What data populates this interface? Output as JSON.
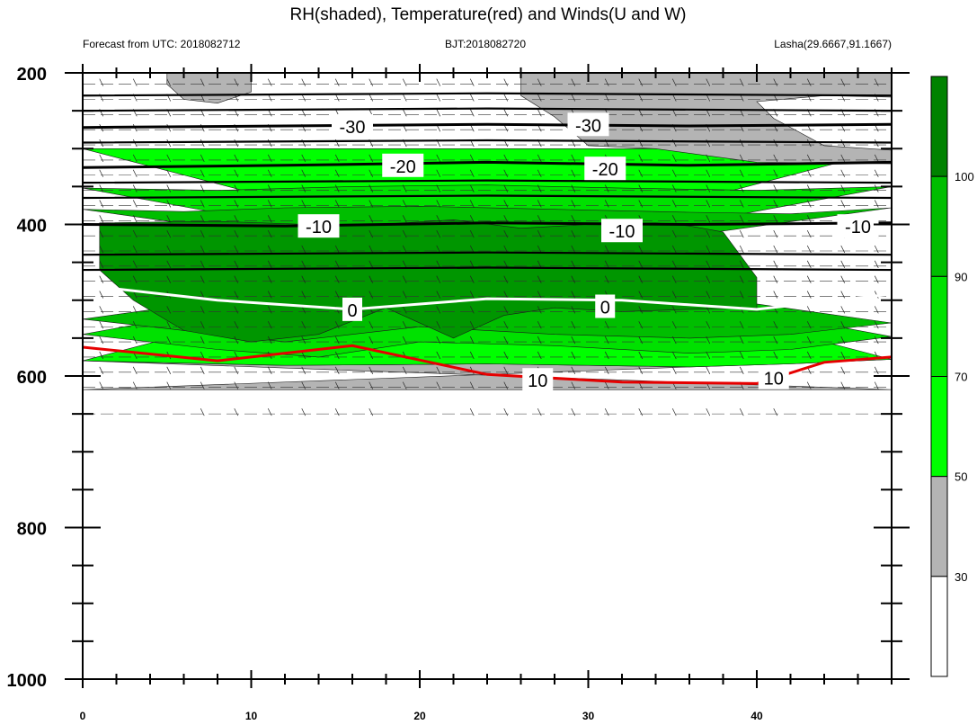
{
  "title": "RH(shaded), Temperature(red) and Winds(U and W)",
  "subtitle_left": "Forecast from UTC: 2018082712",
  "subtitle_center": "BJT:2018082720",
  "subtitle_right": "Lasha(29.6667,91.1667)",
  "colors": {
    "white": "#ffffff",
    "gray": "#b4b4b4",
    "light_green": "#00ff00",
    "mid_green": "#00e100",
    "green": "#00be00",
    "dark_green": "#009600",
    "darkest_green": "#008200",
    "temp_black": "#000000",
    "temp_zero": "#ffffff",
    "temp_warm": "#e60000"
  },
  "chart_data": {
    "type": "heatmap",
    "title": "RH(shaded), Temperature(red) and Winds(U and W)",
    "xlim": [
      0,
      48
    ],
    "ylim": [
      1000,
      200
    ],
    "x_ticks": [
      0,
      10,
      20,
      30,
      40
    ],
    "y_ticks": [
      200,
      400,
      600,
      800,
      1000
    ],
    "colorbar": {
      "levels": [
        30,
        50,
        70,
        90,
        100
      ],
      "labels": [
        "30",
        "50",
        "70",
        "90",
        "100"
      ],
      "colors": [
        "#ffffff",
        "#b4b4b4",
        "#00ff00",
        "#00e100",
        "#00be00",
        "#008200"
      ]
    },
    "rh_bands": [
      {
        "name": "gray-low",
        "color": "#b4b4b4",
        "upper": [
          [
            0,
            580
          ],
          [
            6,
            583
          ],
          [
            12,
            586
          ],
          [
            18,
            585
          ],
          [
            24,
            584
          ],
          [
            30,
            586
          ],
          [
            36,
            588
          ],
          [
            42,
            584
          ],
          [
            48,
            578
          ]
        ],
        "lower": [
          [
            0,
            618
          ],
          [
            48,
            618
          ]
        ]
      },
      {
        "name": "bright-green",
        "color": "#00ff00",
        "upper": [
          [
            0,
            300
          ],
          [
            48,
            300
          ]
        ],
        "lower": [
          [
            0,
            580
          ],
          [
            6,
            583
          ],
          [
            12,
            586
          ],
          [
            18,
            585
          ],
          [
            24,
            584
          ],
          [
            30,
            586
          ],
          [
            36,
            588
          ],
          [
            42,
            584
          ],
          [
            48,
            578
          ]
        ]
      },
      {
        "name": "mid-green",
        "color": "#00e100",
        "upper": [
          [
            0,
            352
          ],
          [
            8,
            355
          ],
          [
            16,
            350
          ],
          [
            24,
            348
          ],
          [
            32,
            352
          ],
          [
            40,
            355
          ],
          [
            48,
            350
          ]
        ],
        "lower": [
          [
            0,
            545
          ],
          [
            8,
            565
          ],
          [
            14,
            575
          ],
          [
            20,
            555
          ],
          [
            28,
            560
          ],
          [
            36,
            570
          ],
          [
            42,
            565
          ],
          [
            48,
            548
          ]
        ]
      },
      {
        "name": "green",
        "color": "#00be00",
        "upper": [
          [
            0,
            380
          ],
          [
            6,
            383
          ],
          [
            12,
            378
          ],
          [
            20,
            376
          ],
          [
            28,
            380
          ],
          [
            36,
            384
          ],
          [
            42,
            386
          ],
          [
            48,
            378
          ]
        ],
        "lower": [
          [
            0,
            525
          ],
          [
            6,
            540
          ],
          [
            12,
            555
          ],
          [
            20,
            535
          ],
          [
            28,
            545
          ],
          [
            36,
            550
          ],
          [
            42,
            545
          ],
          [
            48,
            530
          ]
        ]
      },
      {
        "name": "dark-green",
        "color": "#009600",
        "upper": [
          [
            1,
            398
          ],
          [
            8,
            396
          ],
          [
            16,
            402
          ],
          [
            22,
            394
          ],
          [
            26,
            405
          ],
          [
            30,
            400
          ],
          [
            34,
            398
          ],
          [
            36,
            402
          ],
          [
            38,
            410
          ],
          [
            40,
            470
          ]
        ],
        "lower": [
          [
            40,
            510
          ],
          [
            36,
            512
          ],
          [
            32,
            515
          ],
          [
            28,
            510
          ],
          [
            25,
            520
          ],
          [
            22,
            550
          ],
          [
            18,
            510
          ],
          [
            14,
            545
          ],
          [
            10,
            555
          ],
          [
            6,
            540
          ],
          [
            3,
            500
          ],
          [
            1,
            460
          ]
        ]
      },
      {
        "name": "gray-top-left",
        "color": "#b4b4b4",
        "upper": [
          [
            5,
            200
          ],
          [
            10,
            200
          ]
        ],
        "lower": [
          [
            10,
            225
          ],
          [
            8,
            240
          ],
          [
            6,
            235
          ],
          [
            5,
            215
          ]
        ]
      },
      {
        "name": "gray-top-right",
        "color": "#b4b4b4",
        "upper": [
          [
            26,
            200
          ],
          [
            48,
            200
          ]
        ],
        "lower": [
          [
            48,
            320
          ],
          [
            40,
            318
          ],
          [
            34,
            300
          ],
          [
            30,
            296
          ],
          [
            28,
            258
          ],
          [
            26,
            230
          ]
        ]
      },
      {
        "name": "white-top-right",
        "color": "#ffffff",
        "upper": [
          [
            40,
            238
          ],
          [
            44,
            230
          ],
          [
            48,
            232
          ]
        ],
        "lower": [
          [
            48,
            302
          ],
          [
            44,
            296
          ],
          [
            41,
            260
          ]
        ]
      }
    ],
    "temperature_contours": [
      {
        "label": "-30",
        "color": "#000000",
        "pressures": [
          [
            0,
            272
          ],
          [
            12,
            270
          ],
          [
            24,
            268
          ],
          [
            36,
            270
          ],
          [
            48,
            268
          ]
        ]
      },
      {
        "label": "-20",
        "color": "#000000",
        "pressures": [
          [
            0,
            325
          ],
          [
            12,
            322
          ],
          [
            24,
            318
          ],
          [
            36,
            322
          ],
          [
            48,
            318
          ]
        ]
      },
      {
        "label": "-10",
        "color": "#000000",
        "pressures": [
          [
            0,
            400
          ],
          [
            12,
            402
          ],
          [
            24,
            398
          ],
          [
            36,
            400
          ],
          [
            48,
            398
          ]
        ]
      },
      {
        "label": "0",
        "color": "#ffffff",
        "pressures": [
          [
            0,
            480
          ],
          [
            8,
            500
          ],
          [
            16,
            512
          ],
          [
            24,
            498
          ],
          [
            32,
            500
          ],
          [
            40,
            512
          ],
          [
            48,
            492
          ]
        ]
      },
      {
        "label": "10",
        "color": "#e60000",
        "pressures": [
          [
            0,
            562
          ],
          [
            8,
            580
          ],
          [
            16,
            560
          ],
          [
            24,
            598
          ],
          [
            32,
            608
          ],
          [
            40,
            610
          ],
          [
            44,
            582
          ],
          [
            48,
            575
          ]
        ]
      }
    ],
    "contour_labels": [
      {
        "text": "-30",
        "x": 16,
        "p": 270
      },
      {
        "text": "-30",
        "x": 30,
        "p": 268
      },
      {
        "text": "-20",
        "x": 19,
        "p": 322
      },
      {
        "text": "-20",
        "x": 31,
        "p": 326
      },
      {
        "text": "-10",
        "x": 14,
        "p": 402
      },
      {
        "text": "-10",
        "x": 32,
        "p": 408
      },
      {
        "text": "-10",
        "x": 46,
        "p": 402
      },
      {
        "text": "0",
        "x": 16,
        "p": 512
      },
      {
        "text": "0",
        "x": 31,
        "p": 508
      },
      {
        "text": "10",
        "x": 27,
        "p": 605
      },
      {
        "text": "10",
        "x": 41,
        "p": 602
      }
    ]
  }
}
